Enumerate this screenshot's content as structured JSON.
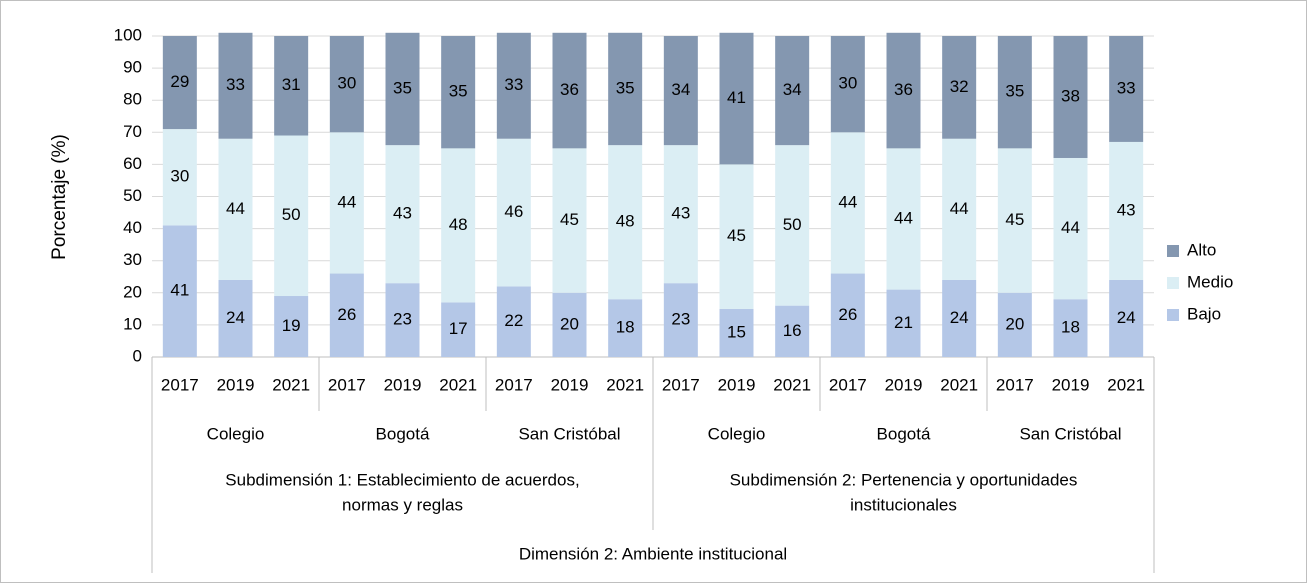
{
  "chart_data": {
    "type": "stacked_bar",
    "y_label": "Porcentaje (%)",
    "categories": [
      "2017",
      "2019",
      "2021",
      "2017",
      "2019",
      "2021",
      "2017",
      "2019",
      "2021",
      "2017",
      "2019",
      "2021",
      "2017",
      "2019",
      "2021",
      "2017",
      "2019",
      "2021"
    ],
    "groups": [
      "Colegio",
      "Bogotá",
      "San Cristóbal",
      "Colegio",
      "Bogotá",
      "San Cristóbal"
    ],
    "supergroups": [
      [
        "Subdimensión 1: Establecimiento de acuerdos,",
        "normas y reglas"
      ],
      [
        "Subdimensión 2: Pertenencia y oportunidades",
        "institucionales"
      ]
    ],
    "dimension": "Dimensión 2: Ambiente institucional",
    "series": [
      {
        "name": "Bajo",
        "color": "#b4c7e7",
        "values": [
          41,
          24,
          19,
          26,
          23,
          17,
          22,
          20,
          18,
          23,
          15,
          16,
          26,
          21,
          24,
          20,
          18,
          24
        ]
      },
      {
        "name": "Medio",
        "color": "#dbeef4",
        "values": [
          30,
          44,
          50,
          44,
          43,
          48,
          46,
          45,
          48,
          43,
          45,
          50,
          44,
          44,
          44,
          45,
          44,
          43
        ]
      },
      {
        "name": "Alto",
        "color": "#8497b0",
        "values": [
          29,
          33,
          31,
          30,
          35,
          35,
          33,
          36,
          35,
          34,
          41,
          34,
          30,
          36,
          32,
          35,
          38,
          33
        ]
      }
    ],
    "ylim": [
      0,
      100
    ],
    "yticks": [
      0,
      10,
      20,
      30,
      40,
      50,
      60,
      70,
      80,
      90,
      100
    ],
    "grid": true,
    "legend": "right"
  }
}
